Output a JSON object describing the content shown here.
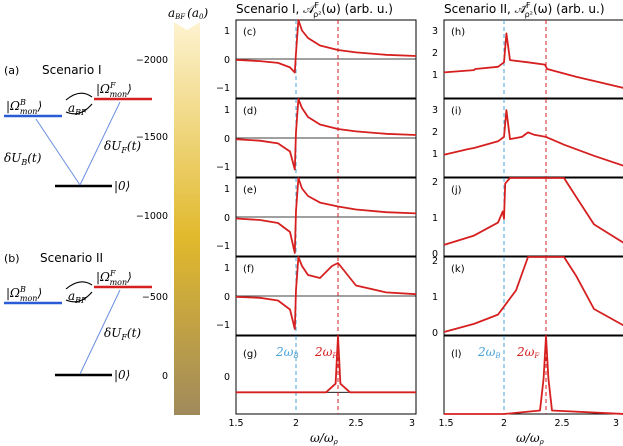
{
  "diagram": {
    "scenario1": {
      "tag": "(a)",
      "title": "Scenario I",
      "level_boson": "|Ω",
      "level_boson_sup": "B",
      "level_boson_sub": "mon",
      "level_fermion": "|Ω",
      "level_fermion_sup": "F",
      "level_fermion_sub": "mon",
      "ground": "|0⟩",
      "coupling": "a",
      "coupling_sub": "BF",
      "drive_b": "δU",
      "drive_b_sub": "B",
      "drive_b_arg": "(t)",
      "drive_f": "δU",
      "drive_f_sub": "F",
      "drive_f_arg": "(t)"
    },
    "scenario2": {
      "tag": "(b)",
      "title": "Scenario II",
      "level_boson": "|Ω",
      "level_boson_sup": "B",
      "level_boson_sub": "mon",
      "level_fermion": "|Ω",
      "level_fermion_sup": "F",
      "level_fermion_sub": "mon",
      "ground": "|0⟩",
      "coupling": "a",
      "coupling_sub": "BF",
      "drive_f": "δU",
      "drive_f_sub": "F",
      "drive_f_arg": "(t)"
    },
    "colors": {
      "boson": "#2a5bd7",
      "fermion": "#d62020",
      "arrow": "#6a8fe0"
    }
  },
  "colorbar": {
    "label": "a",
    "label_sub": "BF",
    "label_unit": "(a",
    "label_unit_sub": "0",
    "label_unit_end": ")",
    "ticks": [
      "−2000",
      "−1500",
      "−1000",
      "−500",
      "0"
    ],
    "top_color": "#fdf3d0",
    "mid_color": "#e1b92c",
    "bottom_color": "#a08a5c"
  },
  "columns": {
    "left_title": "Scenario I, 𝒜",
    "left_title_sup": "F",
    "left_title_sub": "ρ²",
    "left_title_end": "(ω) (arb. u.)",
    "right_title": "Scenario II, 𝒜̃",
    "right_title_sup": "F",
    "right_title_sub": "ρ²",
    "right_title_end": "(ω) (arb. u.)"
  },
  "panels_left": [
    "(c)",
    "(d)",
    "(e)",
    "(f)",
    "(g)"
  ],
  "panels_right": [
    "(h)",
    "(i)",
    "(j)",
    "(k)",
    "(l)"
  ],
  "yticks_left": [
    "1",
    "0",
    "−1"
  ],
  "yticks_right_hi": [
    "3",
    "2",
    "1"
  ],
  "yticks_right_full": [
    "2",
    "1",
    "0"
  ],
  "yticks_bottom": [
    "0"
  ],
  "xticks": [
    "1.5",
    "2",
    "2.5",
    "3"
  ],
  "xlabel": "ω/ω",
  "xlabel_sub": "ρ",
  "markers": {
    "boson": "2ω",
    "boson_sub": "B",
    "fermion": "2ω",
    "fermion_sub": "F"
  },
  "chart_data": {
    "type": "line",
    "xlabel": "ω/ωρ",
    "xlim": [
      1.5,
      3
    ],
    "vlines": {
      "2ωB": 2.0,
      "2ωF": 2.35
    },
    "left": [
      {
        "panel": "(c)",
        "ylim": [
          -1.3,
          1.3
        ],
        "x": [
          1.5,
          1.7,
          1.85,
          1.95,
          1.99,
          2.0,
          2.02,
          2.05,
          2.1,
          2.2,
          2.35,
          2.5,
          2.75,
          3.0
        ],
        "y": [
          -0.03,
          -0.07,
          -0.13,
          -0.28,
          -0.45,
          0.2,
          1.3,
          0.95,
          0.7,
          0.45,
          0.3,
          0.22,
          0.14,
          0.1
        ]
      },
      {
        "panel": "(d)",
        "ylim": [
          -1.3,
          1.3
        ],
        "x": [
          1.5,
          1.7,
          1.85,
          1.95,
          1.99,
          2.0,
          2.02,
          2.05,
          2.1,
          2.2,
          2.35,
          2.5,
          2.75,
          3.0
        ],
        "y": [
          -0.04,
          -0.09,
          -0.18,
          -0.45,
          -1.05,
          0.2,
          1.3,
          1.0,
          0.7,
          0.45,
          0.3,
          0.22,
          0.14,
          0.1
        ]
      },
      {
        "panel": "(e)",
        "ylim": [
          -1.3,
          1.3
        ],
        "x": [
          1.5,
          1.7,
          1.85,
          1.95,
          1.99,
          2.0,
          2.02,
          2.05,
          2.1,
          2.2,
          2.35,
          2.5,
          2.75,
          3.0
        ],
        "y": [
          -0.05,
          -0.1,
          -0.2,
          -0.5,
          -1.2,
          0.2,
          1.3,
          0.95,
          0.7,
          0.48,
          0.35,
          0.25,
          0.16,
          0.12
        ]
      },
      {
        "panel": "(f)",
        "ylim": [
          -1.3,
          1.3
        ],
        "x": [
          1.5,
          1.7,
          1.85,
          1.95,
          1.99,
          2.0,
          2.02,
          2.05,
          2.1,
          2.2,
          2.3,
          2.35,
          2.42,
          2.5,
          2.75,
          3.0
        ],
        "y": [
          -0.03,
          -0.06,
          -0.15,
          -0.45,
          -1.1,
          0.2,
          1.3,
          1.0,
          0.7,
          0.6,
          1.0,
          1.1,
          0.75,
          0.35,
          0.12,
          0.06
        ]
      },
      {
        "panel": "(g)",
        "ylim": [
          -0.5,
          1.3
        ],
        "x": [
          1.5,
          2.0,
          2.25,
          2.33,
          2.35,
          2.37,
          2.45,
          3.0
        ],
        "y": [
          0.0,
          0.0,
          0.0,
          0.2,
          1.3,
          0.2,
          0.0,
          0.0
        ]
      }
    ],
    "right": [
      {
        "panel": "(h)",
        "ylim": [
          0,
          3.5
        ],
        "x": [
          1.5,
          1.75,
          1.76,
          1.95,
          2.0,
          2.02,
          2.05,
          2.2,
          2.34,
          2.36,
          2.6,
          2.8,
          3.0
        ],
        "y": [
          1.15,
          1.25,
          1.3,
          1.4,
          1.6,
          2.9,
          1.7,
          1.6,
          1.5,
          1.3,
          0.95,
          0.7,
          0.45
        ]
      },
      {
        "panel": "(i)",
        "ylim": [
          0,
          3.5
        ],
        "x": [
          1.5,
          1.7,
          1.75,
          1.95,
          2.0,
          2.02,
          2.05,
          2.15,
          2.2,
          2.25,
          2.35,
          2.5,
          2.75,
          3.0
        ],
        "y": [
          1.0,
          1.25,
          1.3,
          1.6,
          1.8,
          3.0,
          1.7,
          1.8,
          2.0,
          1.9,
          1.8,
          1.45,
          0.95,
          0.5
        ]
      },
      {
        "panel": "(j)",
        "ylim": [
          0,
          2.1
        ],
        "x": [
          1.5,
          1.75,
          1.95,
          1.99,
          2.0,
          2.01,
          2.05,
          2.15,
          2.2,
          2.5,
          2.6,
          2.75,
          3.0
        ],
        "y": [
          0.3,
          0.55,
          0.9,
          1.2,
          1.0,
          1.95,
          2.1,
          2.1,
          2.1,
          2.1,
          1.6,
          0.85,
          0.35
        ]
      },
      {
        "panel": "(k)",
        "ylim": [
          0,
          2.1
        ],
        "x": [
          1.5,
          1.75,
          1.95,
          2.1,
          2.2,
          2.5,
          2.6,
          2.75,
          3.0
        ],
        "y": [
          0.08,
          0.3,
          0.55,
          1.2,
          2.1,
          2.1,
          1.6,
          0.7,
          0.25
        ]
      },
      {
        "panel": "(l)",
        "ylim": [
          0,
          1.1
        ],
        "x": [
          1.5,
          2.0,
          2.3,
          2.33,
          2.35,
          2.37,
          2.4,
          3.0
        ],
        "y": [
          0.0,
          0.0,
          0.05,
          0.5,
          1.1,
          0.5,
          0.05,
          0.0
        ]
      }
    ]
  }
}
